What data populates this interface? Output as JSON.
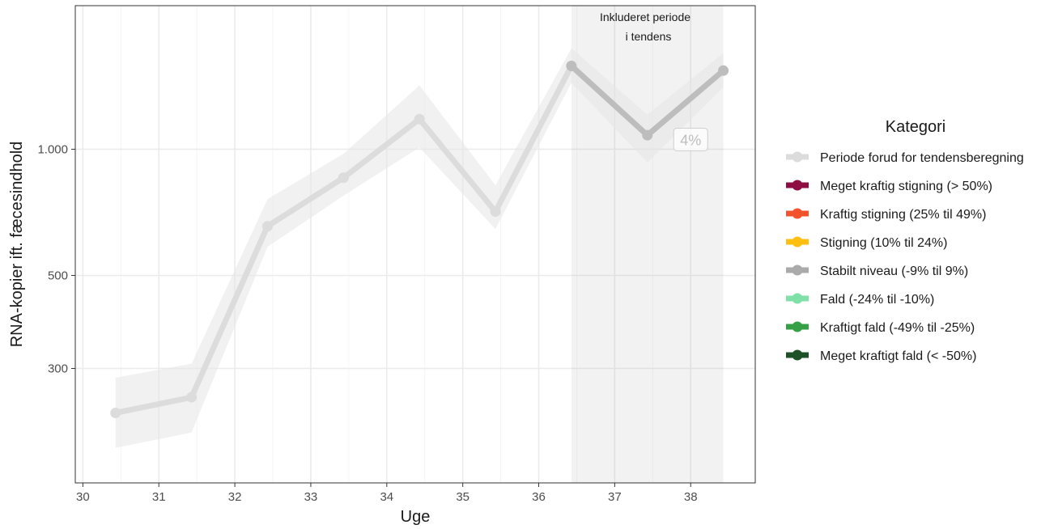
{
  "chart_data": {
    "type": "line",
    "xlabel": "Uge",
    "ylabel": "RNA-kopier ift. fæcesindhold",
    "xlim": [
      29.9,
      38.85
    ],
    "ylim_log": [
      160,
      2200
    ],
    "y_scale": "log",
    "grid": true,
    "x_ticks": [
      30,
      31,
      32,
      33,
      34,
      35,
      36,
      37,
      38
    ],
    "x_tick_labels": [
      "30",
      "31",
      "32",
      "33",
      "34",
      "35",
      "36",
      "37",
      "38"
    ],
    "y_ticks": [
      300,
      500,
      1000
    ],
    "y_tick_labels": [
      "300",
      "500",
      "1.000"
    ],
    "x": [
      30.43,
      31.43,
      32.43,
      33.43,
      34.43,
      35.43,
      36.43,
      37.43,
      38.43
    ],
    "y": [
      235,
      256,
      655,
      855,
      1180,
      710,
      1580,
      1080,
      1540
    ],
    "ribbon_lower": [
      194,
      211,
      585,
      775,
      1010,
      645,
      1440,
      930,
      1405
    ],
    "ribbon_upper": [
      285,
      308,
      760,
      975,
      1420,
      820,
      1740,
      1210,
      1695
    ],
    "series": [
      {
        "name": "Periode forud for tendensberegning",
        "x_range": [
          30.43,
          36.43
        ],
        "color": "#dcdcdc"
      },
      {
        "name": "Stabilt niveau (-9% til 9%)",
        "x_range": [
          36.43,
          38.43
        ],
        "color": "#bdbdbd"
      }
    ],
    "highlight": {
      "x_range": [
        36.43,
        38.43
      ],
      "label_line1": "Inkluderet periode",
      "label_line2": "i tendens"
    },
    "trend_label": {
      "text": "4%",
      "x": 38.0,
      "y": 1050
    },
    "legend": {
      "title": "Kategori",
      "position": "right",
      "items": [
        {
          "label": "Periode forud for tendensberegning",
          "color": "#dcdcdc"
        },
        {
          "label": "Meget kraftig stigning (> 50%)",
          "color": "#8e0e43"
        },
        {
          "label": "Kraftig stigning (25% til 49%)",
          "color": "#f4522d"
        },
        {
          "label": "Stigning (10% til 24%)",
          "color": "#fcbf12"
        },
        {
          "label": "Stabilt niveau (-9% til 9%)",
          "color": "#aaaaaa"
        },
        {
          "label": "Fald (-24% til -10%)",
          "color": "#7fe0a8"
        },
        {
          "label": "Kraftigt fald (-49% til -25%)",
          "color": "#36a047"
        },
        {
          "label": "Meget kraftigt fald (< -50%)",
          "color": "#1d5126"
        }
      ]
    }
  }
}
